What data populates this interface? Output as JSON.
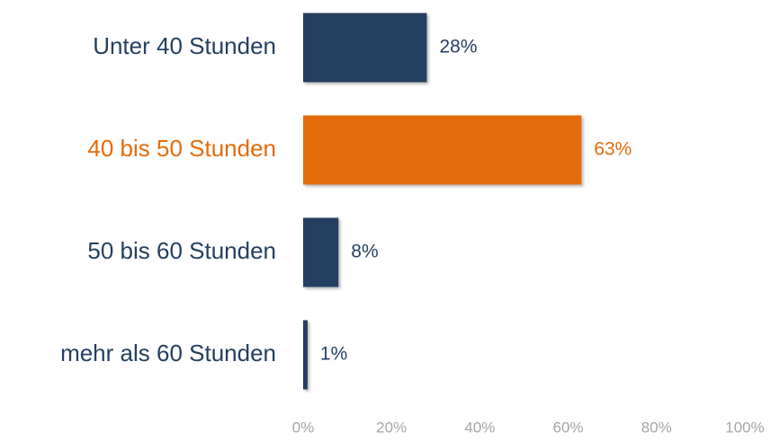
{
  "chart_data": {
    "type": "hbar",
    "categories": [
      "Unter 40 Stunden",
      "40 bis 50 Stunden",
      "50 bis 60 Stunden",
      "mehr als 60 Stunden"
    ],
    "values": [
      28,
      63,
      8,
      1
    ],
    "value_labels": [
      "28%",
      "63%",
      "8%",
      "1%"
    ],
    "colors": [
      "#243f60",
      "#e46c0a",
      "#243f60",
      "#243f60"
    ],
    "xlim": [
      0,
      100
    ],
    "xticks": [
      {
        "value": 0,
        "label": "0%"
      },
      {
        "value": 20,
        "label": "20%"
      },
      {
        "value": 40,
        "label": "40%"
      },
      {
        "value": 60,
        "label": "60%"
      },
      {
        "value": 80,
        "label": "80%"
      },
      {
        "value": 100,
        "label": "100%"
      }
    ],
    "grid": false
  }
}
